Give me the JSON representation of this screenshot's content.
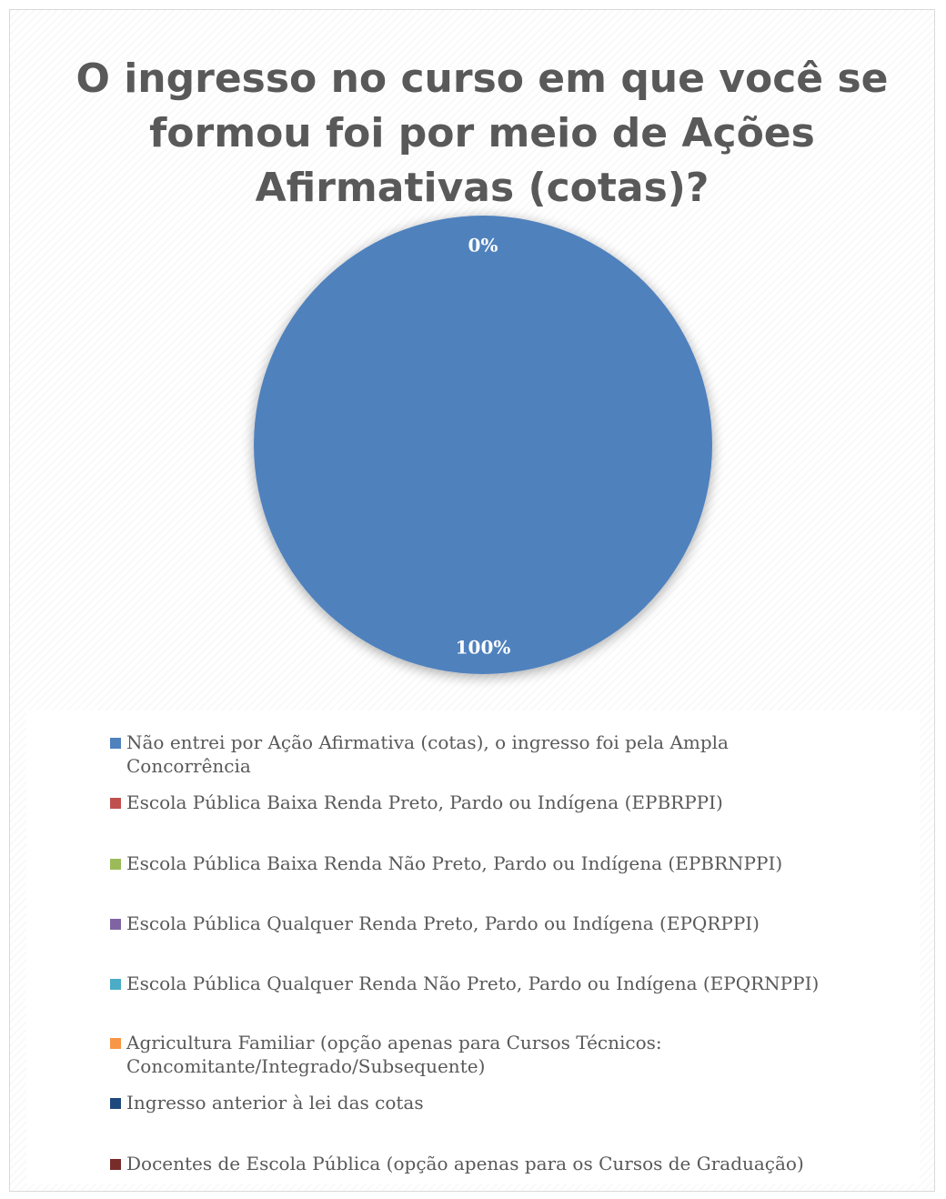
{
  "chart_data": {
    "type": "pie",
    "title": "O ingresso no curso em que você se formou foi por meio de Ações Afirmativas (cotas)?",
    "categories": [
      "Não entrei por Ação Afirmativa (cotas), o ingresso foi pela Ampla Concorrência",
      "Escola Pública Baixa Renda Preto, Pardo ou Indígena (EPBRPPI)",
      "Escola Pública Baixa Renda Não Preto, Pardo ou Indígena (EPBRNPPI)",
      "Escola Pública Qualquer Renda Preto, Pardo ou Indígena (EPQRPPI)",
      "Escola Pública Qualquer Renda Não Preto, Pardo ou Indígena (EPQRNPPI)",
      "Agricultura Familiar (opção apenas para Cursos Técnicos: Concomitante/Integrado/Subsequente)",
      "Ingresso anterior à lei das cotas",
      "Docentes de Escola Pública (opção apenas para os Cursos de Graduação)"
    ],
    "values": [
      100,
      0,
      0,
      0,
      0,
      0,
      0,
      0
    ],
    "colors": [
      "#4f81bd",
      "#c0504d",
      "#9bbb59",
      "#8064a2",
      "#4bacc6",
      "#f79646",
      "#1f497d",
      "#772c2a"
    ],
    "data_labels": [
      {
        "text": "100%",
        "series_index": 0
      },
      {
        "text": "0%",
        "series_index": 1
      }
    ],
    "legend_position": "bottom"
  }
}
